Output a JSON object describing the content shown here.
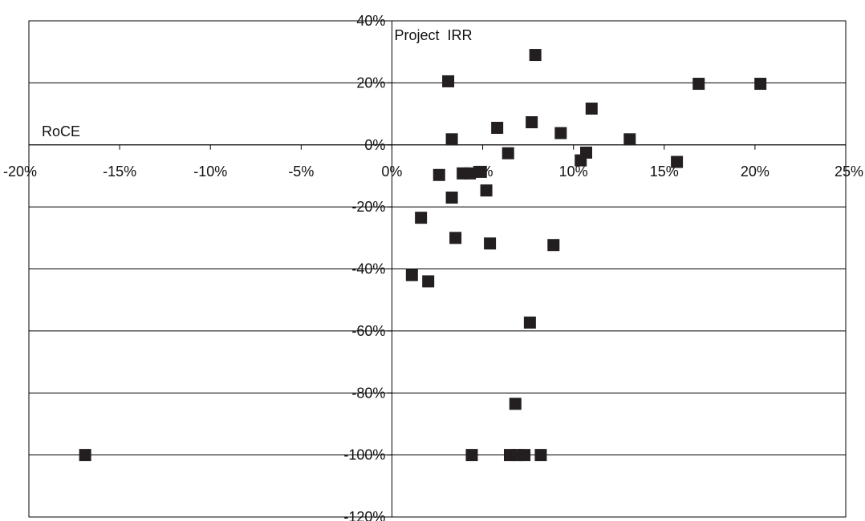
{
  "chart_data": {
    "type": "scatter",
    "title": "",
    "xlabel": "RoCE",
    "ylabel": "Project  IRR",
    "xlim": [
      -0.2,
      0.25
    ],
    "ylim": [
      -1.2,
      0.4
    ],
    "x_ticks": [
      -0.2,
      -0.15,
      -0.1,
      -0.05,
      0.0,
      0.05,
      0.1,
      0.15,
      0.2,
      0.25
    ],
    "x_tick_labels": [
      "-20%",
      "-15%",
      "-10%",
      "-5%",
      "0%",
      "5%",
      "10%",
      "15%",
      "20%",
      "25%"
    ],
    "y_ticks": [
      0.4,
      0.2,
      0.0,
      -0.2,
      -0.4,
      -0.6,
      -0.8,
      -1.0,
      -1.2
    ],
    "y_tick_labels": [
      "40%",
      "20%",
      "0%",
      "-20%",
      "-40%",
      "-60%",
      "-80%",
      "-100%",
      "-120%"
    ],
    "grid": "horizontal",
    "legend": "none",
    "marker_color": "#231f20",
    "series": [
      {
        "points": [
          {
            "x": 0.079,
            "y": 0.29
          },
          {
            "x": 0.031,
            "y": 0.205
          },
          {
            "x": 0.169,
            "y": 0.197
          },
          {
            "x": 0.203,
            "y": 0.197
          },
          {
            "x": 0.11,
            "y": 0.117
          },
          {
            "x": 0.077,
            "y": 0.073
          },
          {
            "x": 0.058,
            "y": 0.055
          },
          {
            "x": 0.093,
            "y": 0.038
          },
          {
            "x": 0.033,
            "y": 0.018
          },
          {
            "x": 0.131,
            "y": 0.018
          },
          {
            "x": 0.064,
            "y": -0.027
          },
          {
            "x": 0.107,
            "y": -0.025
          },
          {
            "x": 0.104,
            "y": -0.05
          },
          {
            "x": 0.157,
            "y": -0.055
          },
          {
            "x": 0.026,
            "y": -0.097
          },
          {
            "x": 0.039,
            "y": -0.092
          },
          {
            "x": 0.043,
            "y": -0.092
          },
          {
            "x": 0.049,
            "y": -0.087
          },
          {
            "x": 0.052,
            "y": -0.147
          },
          {
            "x": 0.033,
            "y": -0.17
          },
          {
            "x": 0.016,
            "y": -0.235
          },
          {
            "x": 0.035,
            "y": -0.3
          },
          {
            "x": 0.054,
            "y": -0.318
          },
          {
            "x": 0.089,
            "y": -0.323
          },
          {
            "x": 0.011,
            "y": -0.42
          },
          {
            "x": 0.02,
            "y": -0.44
          },
          {
            "x": 0.076,
            "y": -0.573
          },
          {
            "x": 0.068,
            "y": -0.835
          },
          {
            "x": -0.169,
            "y": -1.0
          },
          {
            "x": 0.044,
            "y": -1.0
          },
          {
            "x": 0.065,
            "y": -1.0
          },
          {
            "x": 0.069,
            "y": -1.0
          },
          {
            "x": 0.073,
            "y": -1.0
          },
          {
            "x": 0.082,
            "y": -1.0
          }
        ]
      }
    ]
  }
}
